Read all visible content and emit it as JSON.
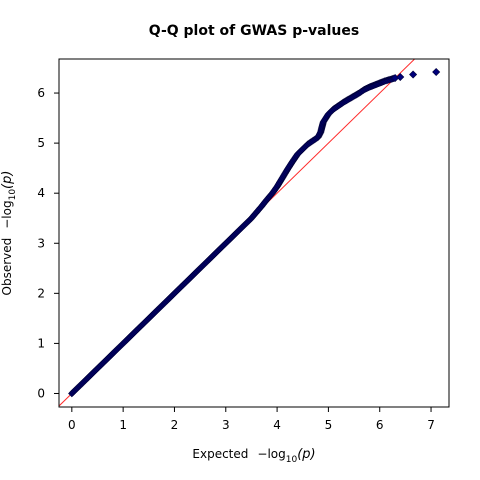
{
  "chart_data": {
    "type": "scatter",
    "title": "Q-Q plot of GWAS p-values",
    "xlabel": {
      "prefix": "Expected",
      "log": "−log",
      "sub": "10",
      "var": "(p)"
    },
    "ylabel": {
      "prefix": "Observed",
      "log": "−log",
      "sub": "10",
      "var": "(p)"
    },
    "xlim": [
      -0.25,
      7.35
    ],
    "ylim": [
      -0.27,
      6.68
    ],
    "xticks": [
      0,
      1,
      2,
      3,
      4,
      5,
      6,
      7
    ],
    "yticks": [
      0,
      1,
      2,
      3,
      4,
      5,
      6
    ],
    "grid": false,
    "reference_line": {
      "from": [
        -0.25,
        -0.25
      ],
      "to": [
        7.35,
        7.35
      ],
      "color": "#ff2a2a"
    },
    "marker": {
      "shape": "diamond",
      "color": "#00007a"
    },
    "series": [
      {
        "points": [
          [
            0.0,
            0.0
          ],
          [
            0.1,
            0.1
          ],
          [
            0.2,
            0.2
          ],
          [
            0.3,
            0.3
          ],
          [
            0.4,
            0.4
          ],
          [
            0.5,
            0.5
          ],
          [
            0.6,
            0.6
          ],
          [
            0.7,
            0.7
          ],
          [
            0.8,
            0.8
          ],
          [
            0.9,
            0.9
          ],
          [
            1.0,
            1.0
          ],
          [
            1.1,
            1.1
          ],
          [
            1.2,
            1.2
          ],
          [
            1.3,
            1.3
          ],
          [
            1.4,
            1.4
          ],
          [
            1.5,
            1.5
          ],
          [
            1.6,
            1.6
          ],
          [
            1.7,
            1.7
          ],
          [
            1.8,
            1.8
          ],
          [
            1.9,
            1.9
          ],
          [
            2.0,
            2.0
          ],
          [
            2.1,
            2.1
          ],
          [
            2.2,
            2.2
          ],
          [
            2.3,
            2.3
          ],
          [
            2.4,
            2.4
          ],
          [
            2.5,
            2.5
          ],
          [
            2.6,
            2.6
          ],
          [
            2.7,
            2.7
          ],
          [
            2.8,
            2.8
          ],
          [
            2.9,
            2.9
          ],
          [
            3.0,
            3.0
          ],
          [
            3.1,
            3.1
          ],
          [
            3.2,
            3.2
          ],
          [
            3.3,
            3.3
          ],
          [
            3.4,
            3.4
          ],
          [
            3.5,
            3.5
          ],
          [
            3.6,
            3.62
          ],
          [
            3.7,
            3.74
          ],
          [
            3.8,
            3.87
          ],
          [
            3.9,
            3.99
          ],
          [
            4.0,
            4.13
          ],
          [
            4.1,
            4.3
          ],
          [
            4.2,
            4.47
          ],
          [
            4.3,
            4.63
          ],
          [
            4.4,
            4.78
          ],
          [
            4.5,
            4.88
          ],
          [
            4.6,
            4.98
          ],
          [
            4.7,
            5.05
          ],
          [
            4.8,
            5.12
          ],
          [
            4.85,
            5.22
          ],
          [
            4.9,
            5.42
          ],
          [
            5.0,
            5.58
          ],
          [
            5.1,
            5.68
          ],
          [
            5.2,
            5.75
          ],
          [
            5.3,
            5.82
          ],
          [
            5.4,
            5.88
          ],
          [
            5.5,
            5.94
          ],
          [
            5.6,
            6.0
          ],
          [
            5.7,
            6.07
          ],
          [
            5.8,
            6.12
          ],
          [
            5.9,
            6.16
          ],
          [
            6.0,
            6.2
          ],
          [
            6.1,
            6.24
          ],
          [
            6.2,
            6.27
          ],
          [
            6.3,
            6.3
          ],
          [
            6.4,
            6.32
          ],
          [
            6.65,
            6.37
          ],
          [
            7.1,
            6.42
          ]
        ]
      }
    ]
  }
}
